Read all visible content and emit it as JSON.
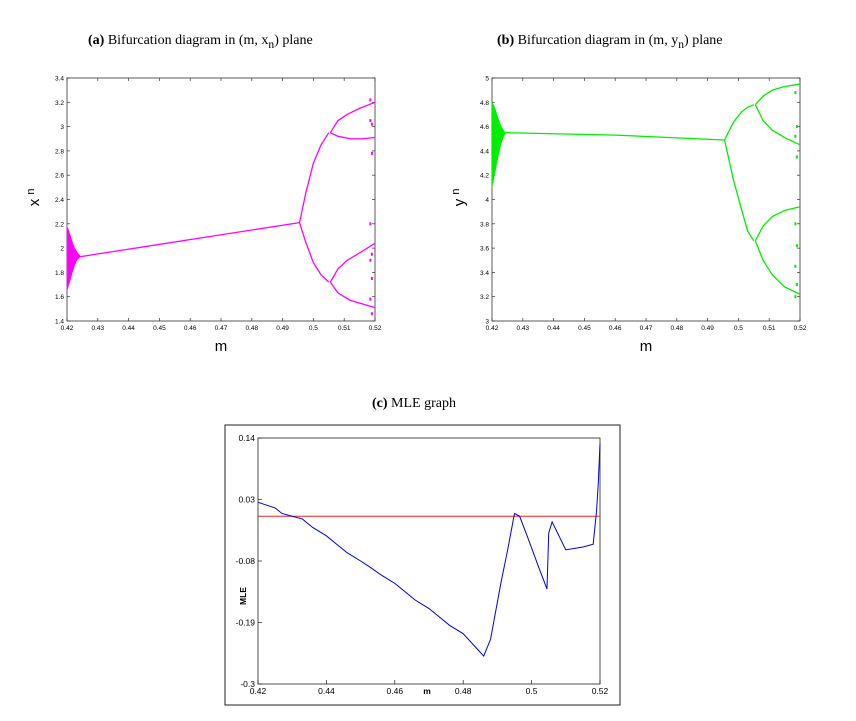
{
  "captions": {
    "a": {
      "tag": "(a)",
      "text": "Bifurcation diagram in (m, x",
      "sub": "n",
      "end": ") plane"
    },
    "b": {
      "tag": "(b)",
      "text": "Bifurcation diagram in (m, y",
      "sub": "n",
      "end": ") plane"
    },
    "c": {
      "tag": "(c)",
      "text": "MLE graph"
    }
  },
  "chart_data": [
    {
      "type": "scatter",
      "title": "",
      "xlabel": "m",
      "ylabel": "x",
      "ylabel_sub": "n",
      "xlim": [
        0.42,
        0.52
      ],
      "ylim": [
        1.4,
        3.4
      ],
      "xticks": [
        "0.42",
        "0.43",
        "0.44",
        "0.45",
        "0.46",
        "0.47",
        "0.48",
        "0.49",
        "0.5",
        "0.51",
        "0.52"
      ],
      "yticks": [
        "1.4",
        "1.6",
        "1.8",
        "2",
        "2.2",
        "2.4",
        "2.6",
        "2.8",
        "3",
        "3.2",
        "3.4"
      ],
      "color": "#ff00ff",
      "grid": false,
      "series": [
        {
          "kind": "band",
          "x": [
            0.42,
            0.4205,
            0.421,
            0.4215,
            0.422,
            0.4225,
            0.423,
            0.4235,
            0.424,
            0.4245
          ],
          "upper": [
            2.18,
            2.15,
            2.11,
            2.07,
            2.03,
            2.0,
            1.98,
            1.96,
            1.945,
            1.93
          ],
          "lower": [
            1.65,
            1.69,
            1.73,
            1.78,
            1.82,
            1.86,
            1.89,
            1.91,
            1.92,
            1.93
          ]
        },
        {
          "kind": "line",
          "x": [
            0.4245,
            0.4955
          ],
          "y": [
            1.93,
            2.21
          ]
        },
        {
          "kind": "line",
          "x": [
            0.4955,
            0.4975,
            0.5,
            0.5025,
            0.505
          ],
          "y": [
            2.21,
            2.45,
            2.7,
            2.85,
            2.95
          ]
        },
        {
          "kind": "line",
          "x": [
            0.4955,
            0.4975,
            0.5,
            0.5025,
            0.505
          ],
          "y": [
            2.21,
            2.05,
            1.88,
            1.78,
            1.72
          ]
        },
        {
          "kind": "line",
          "x": [
            0.5055,
            0.508,
            0.511,
            0.515,
            0.52
          ],
          "y": [
            2.95,
            3.05,
            3.1,
            3.15,
            3.2
          ]
        },
        {
          "kind": "line",
          "x": [
            0.5055,
            0.508,
            0.512,
            0.516,
            0.52
          ],
          "y": [
            2.95,
            2.92,
            2.9,
            2.9,
            2.91
          ]
        },
        {
          "kind": "line",
          "x": [
            0.5055,
            0.508,
            0.511,
            0.515,
            0.52
          ],
          "y": [
            1.72,
            1.83,
            1.9,
            1.96,
            2.04
          ]
        },
        {
          "kind": "line",
          "x": [
            0.5055,
            0.508,
            0.512,
            0.516,
            0.52
          ],
          "y": [
            1.72,
            1.63,
            1.57,
            1.54,
            1.51
          ]
        },
        {
          "kind": "dots",
          "x": [
            0.5185,
            0.5185,
            0.519,
            0.519,
            0.5185,
            0.519,
            0.5185,
            0.519,
            0.5185,
            0.519
          ],
          "y": [
            3.22,
            3.05,
            3.02,
            2.78,
            2.2,
            1.95,
            1.9,
            1.75,
            1.58,
            1.46
          ]
        }
      ]
    },
    {
      "type": "scatter",
      "title": "",
      "xlabel": "m",
      "ylabel": "y",
      "ylabel_sub": "n",
      "xlim": [
        0.42,
        0.52
      ],
      "ylim": [
        3,
        5
      ],
      "xticks": [
        "0.42",
        "0.43",
        "0.44",
        "0.45",
        "0.46",
        "0.47",
        "0.48",
        "0.49",
        "0.5",
        "0.51",
        "0.52"
      ],
      "yticks": [
        "3",
        "3.2",
        "3.4",
        "3.6",
        "3.8",
        "4",
        "4.2",
        "4.4",
        "4.6",
        "4.8",
        "5"
      ],
      "color": "#00ee00",
      "grid": false,
      "series": [
        {
          "kind": "band",
          "x": [
            0.42,
            0.4205,
            0.421,
            0.4215,
            0.422,
            0.4225,
            0.423,
            0.4235,
            0.424,
            0.4245
          ],
          "upper": [
            4.8,
            4.78,
            4.75,
            4.71,
            4.67,
            4.63,
            4.6,
            4.58,
            4.56,
            4.55
          ],
          "lower": [
            4.1,
            4.16,
            4.22,
            4.29,
            4.35,
            4.41,
            4.46,
            4.5,
            4.53,
            4.55
          ]
        },
        {
          "kind": "line",
          "x": [
            0.4245,
            0.46,
            0.4955
          ],
          "y": [
            4.55,
            4.53,
            4.49
          ]
        },
        {
          "kind": "line",
          "x": [
            0.4955,
            0.4985,
            0.501,
            0.503,
            0.505
          ],
          "y": [
            4.49,
            4.64,
            4.72,
            4.76,
            4.78
          ]
        },
        {
          "kind": "line",
          "x": [
            0.4955,
            0.4985,
            0.501,
            0.503,
            0.505
          ],
          "y": [
            4.49,
            4.15,
            3.92,
            3.74,
            3.66
          ]
        },
        {
          "kind": "line",
          "x": [
            0.5055,
            0.508,
            0.511,
            0.515,
            0.52
          ],
          "y": [
            4.78,
            4.85,
            4.9,
            4.93,
            4.95
          ]
        },
        {
          "kind": "line",
          "x": [
            0.5055,
            0.508,
            0.511,
            0.515,
            0.52
          ],
          "y": [
            4.78,
            4.65,
            4.57,
            4.51,
            4.45
          ]
        },
        {
          "kind": "line",
          "x": [
            0.5055,
            0.508,
            0.511,
            0.515,
            0.52
          ],
          "y": [
            3.66,
            3.78,
            3.86,
            3.91,
            3.94
          ]
        },
        {
          "kind": "line",
          "x": [
            0.5055,
            0.508,
            0.511,
            0.515,
            0.52
          ],
          "y": [
            3.66,
            3.5,
            3.38,
            3.28,
            3.22
          ]
        },
        {
          "kind": "dots",
          "x": [
            0.5185,
            0.519,
            0.5185,
            0.519,
            0.5185,
            0.519,
            0.5185,
            0.519,
            0.5185
          ],
          "y": [
            4.88,
            4.6,
            4.52,
            4.35,
            3.8,
            3.62,
            3.45,
            3.3,
            3.2
          ]
        }
      ]
    },
    {
      "type": "line",
      "title": "",
      "xlabel": "m",
      "ylabel": "MLE",
      "xlim": [
        0.42,
        0.52
      ],
      "ylim": [
        -0.3,
        0.14
      ],
      "xticks": [
        "0.42",
        "0.44",
        "0.46",
        "0.48",
        "0.5",
        "0.52"
      ],
      "yticks": [
        "-0.3",
        "-0.19",
        "-0.08",
        "0.03",
        "0.14"
      ],
      "yticks_values": [
        -0.3,
        -0.19,
        -0.08,
        0.03,
        0.14
      ],
      "grid": false,
      "reference_line": {
        "y": 0,
        "color": "#ee2222"
      },
      "series": [
        {
          "name": "",
          "color": "#0000dd",
          "x": [
            0.42,
            0.425,
            0.427,
            0.43,
            0.433,
            0.436,
            0.44,
            0.443,
            0.446,
            0.45,
            0.453,
            0.456,
            0.46,
            0.463,
            0.466,
            0.47,
            0.473,
            0.476,
            0.48,
            0.483,
            0.486,
            0.488,
            0.491,
            0.493,
            0.495,
            0.4965,
            0.499,
            0.502,
            0.5045,
            0.505,
            0.506,
            0.51,
            0.515,
            0.518,
            0.519,
            0.5195,
            0.52
          ],
          "y": [
            0.025,
            0.015,
            0.005,
            0.0,
            -0.005,
            -0.02,
            -0.035,
            -0.05,
            -0.065,
            -0.08,
            -0.092,
            -0.105,
            -0.12,
            -0.135,
            -0.15,
            -0.165,
            -0.18,
            -0.195,
            -0.21,
            -0.23,
            -0.25,
            -0.22,
            -0.12,
            -0.06,
            0.005,
            0.0,
            -0.04,
            -0.09,
            -0.13,
            -0.03,
            -0.01,
            -0.06,
            -0.055,
            -0.05,
            0.01,
            0.06,
            0.13
          ]
        }
      ]
    }
  ]
}
